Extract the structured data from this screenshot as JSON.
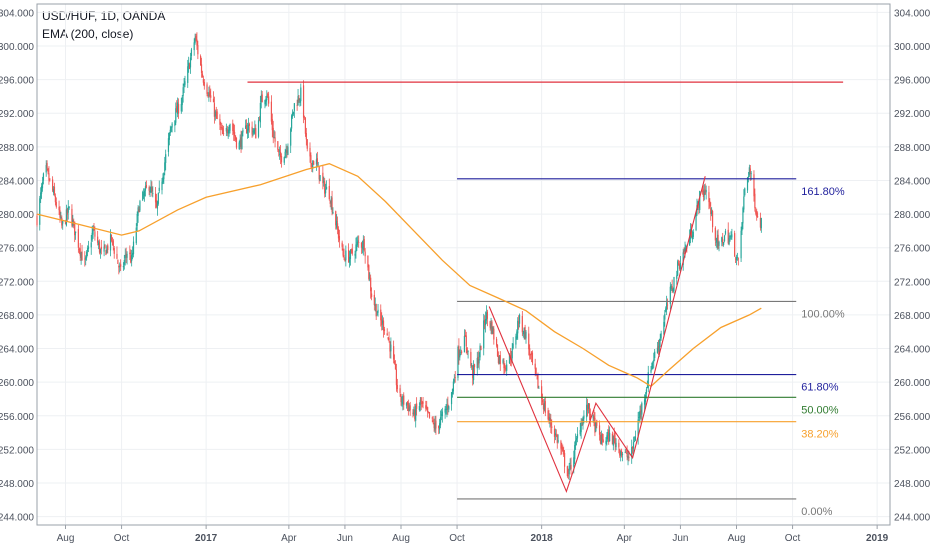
{
  "legend": {
    "symbol_line": "USD/HUF, 1D, OANDA",
    "indicator_line": "EMA (200, close)"
  },
  "chart_data": {
    "type": "candlestick",
    "title": "USD/HUF, 1D, OANDA",
    "y_axis": {
      "range": [
        243,
        305
      ],
      "ticks": [
        "244.000",
        "248.000",
        "252.000",
        "256.000",
        "260.000",
        "264.000",
        "268.000",
        "272.000",
        "276.000",
        "280.000",
        "284.000",
        "288.000",
        "292.000",
        "296.000",
        "300.000",
        "304.000"
      ],
      "position": "both"
    },
    "x_axis": {
      "start": "2016-07-01",
      "end": "2019-01-15",
      "ticks": [
        {
          "label": "Aug",
          "date": "2016-08-01",
          "bold": false
        },
        {
          "label": "Oct",
          "date": "2016-10-01",
          "bold": false
        },
        {
          "label": "2017",
          "date": "2017-01-01",
          "bold": true
        },
        {
          "label": "Apr",
          "date": "2017-04-01",
          "bold": false
        },
        {
          "label": "Jun",
          "date": "2017-06-01",
          "bold": false
        },
        {
          "label": "Aug",
          "date": "2017-08-01",
          "bold": false
        },
        {
          "label": "Oct",
          "date": "2017-10-01",
          "bold": false
        },
        {
          "label": "2018",
          "date": "2018-01-01",
          "bold": true
        },
        {
          "label": "Apr",
          "date": "2018-04-01",
          "bold": false
        },
        {
          "label": "Jun",
          "date": "2018-06-01",
          "bold": false
        },
        {
          "label": "Aug",
          "date": "2018-08-01",
          "bold": false
        },
        {
          "label": "Oct",
          "date": "2018-10-01",
          "bold": false
        },
        {
          "label": "2019",
          "date": "2019-01-01",
          "bold": true
        }
      ]
    },
    "grid": true,
    "price_path": [
      [
        "2016-07-01",
        279.5
      ],
      [
        "2016-07-10",
        285.5
      ],
      [
        "2016-07-20",
        282.0
      ],
      [
        "2016-07-28",
        278.5
      ],
      [
        "2016-08-05",
        280.5
      ],
      [
        "2016-08-15",
        276.5
      ],
      [
        "2016-08-22",
        274.0
      ],
      [
        "2016-08-31",
        278.0
      ],
      [
        "2016-09-10",
        275.0
      ],
      [
        "2016-09-20",
        277.0
      ],
      [
        "2016-09-30",
        273.0
      ],
      [
        "2016-10-07",
        275.5
      ],
      [
        "2016-10-12",
        274.5
      ],
      [
        "2016-10-20",
        281.0
      ],
      [
        "2016-10-31",
        283.5
      ],
      [
        "2016-11-08",
        280.5
      ],
      [
        "2016-11-15",
        285.0
      ],
      [
        "2016-11-25",
        291.0
      ],
      [
        "2016-12-05",
        293.5
      ],
      [
        "2016-12-12",
        297.0
      ],
      [
        "2016-12-20",
        301.0
      ],
      [
        "2016-12-28",
        296.5
      ],
      [
        "2017-01-05",
        294.0
      ],
      [
        "2017-01-12",
        291.5
      ],
      [
        "2017-01-20",
        289.0
      ],
      [
        "2017-01-27",
        291.0
      ],
      [
        "2017-02-05",
        288.0
      ],
      [
        "2017-02-15",
        290.5
      ],
      [
        "2017-02-25",
        289.5
      ],
      [
        "2017-03-02",
        293.5
      ],
      [
        "2017-03-08",
        294.5
      ],
      [
        "2017-03-15",
        289.5
      ],
      [
        "2017-03-22",
        286.5
      ],
      [
        "2017-03-30",
        288.0
      ],
      [
        "2017-04-07",
        293.0
      ],
      [
        "2017-04-15",
        294.5
      ],
      [
        "2017-04-22",
        286.0
      ],
      [
        "2017-04-30",
        286.5
      ],
      [
        "2017-05-07",
        283.5
      ],
      [
        "2017-05-15",
        282.5
      ],
      [
        "2017-05-22",
        279.0
      ],
      [
        "2017-05-30",
        275.0
      ],
      [
        "2017-06-07",
        275.0
      ],
      [
        "2017-06-15",
        276.5
      ],
      [
        "2017-06-22",
        276.5
      ],
      [
        "2017-06-30",
        270.5
      ],
      [
        "2017-07-08",
        267.5
      ],
      [
        "2017-07-15",
        266.5
      ],
      [
        "2017-07-22",
        263.5
      ],
      [
        "2017-07-30",
        258.0
      ],
      [
        "2017-08-07",
        257.5
      ],
      [
        "2017-08-15",
        256.0
      ],
      [
        "2017-08-22",
        257.5
      ],
      [
        "2017-08-30",
        256.0
      ],
      [
        "2017-09-08",
        254.5
      ],
      [
        "2017-09-18",
        256.5
      ],
      [
        "2017-09-25",
        258.5
      ],
      [
        "2017-10-02",
        263.5
      ],
      [
        "2017-10-10",
        265.0
      ],
      [
        "2017-10-18",
        261.0
      ],
      [
        "2017-10-25",
        263.0
      ],
      [
        "2017-11-01",
        268.0
      ],
      [
        "2017-11-08",
        266.5
      ],
      [
        "2017-11-15",
        263.0
      ],
      [
        "2017-11-22",
        262.0
      ],
      [
        "2017-11-30",
        263.5
      ],
      [
        "2017-12-07",
        267.5
      ],
      [
        "2017-12-15",
        265.5
      ],
      [
        "2017-12-22",
        262.0
      ],
      [
        "2017-12-31",
        258.5
      ],
      [
        "2018-01-07",
        256.0
      ],
      [
        "2018-01-15",
        254.0
      ],
      [
        "2018-01-22",
        252.0
      ],
      [
        "2018-01-30",
        249.0
      ],
      [
        "2018-02-05",
        251.5
      ],
      [
        "2018-02-12",
        255.0
      ],
      [
        "2018-02-20",
        257.0
      ],
      [
        "2018-02-27",
        255.0
      ],
      [
        "2018-03-07",
        253.0
      ],
      [
        "2018-03-15",
        253.5
      ],
      [
        "2018-03-22",
        253.0
      ],
      [
        "2018-03-30",
        251.5
      ],
      [
        "2018-04-08",
        251.0
      ],
      [
        "2018-04-15",
        255.0
      ],
      [
        "2018-04-22",
        258.0
      ],
      [
        "2018-04-30",
        262.0
      ],
      [
        "2018-05-08",
        264.5
      ],
      [
        "2018-05-15",
        268.0
      ],
      [
        "2018-05-22",
        271.0
      ],
      [
        "2018-05-30",
        274.0
      ],
      [
        "2018-06-07",
        276.0
      ],
      [
        "2018-06-15",
        278.5
      ],
      [
        "2018-06-22",
        282.0
      ],
      [
        "2018-06-29",
        283.0
      ],
      [
        "2018-07-06",
        279.0
      ],
      [
        "2018-07-12",
        276.0
      ],
      [
        "2018-07-20",
        277.5
      ],
      [
        "2018-07-27",
        277.0
      ],
      [
        "2018-08-03",
        274.0
      ],
      [
        "2018-08-10",
        283.0
      ],
      [
        "2018-08-15",
        285.5
      ],
      [
        "2018-08-20",
        282.0
      ],
      [
        "2018-08-24",
        279.5
      ],
      [
        "2018-08-28",
        279.0
      ]
    ],
    "ema_200": [
      [
        "2016-07-01",
        280.0
      ],
      [
        "2016-08-15",
        278.8
      ],
      [
        "2016-10-01",
        277.5
      ],
      [
        "2016-10-20",
        278.0
      ],
      [
        "2016-12-01",
        280.5
      ],
      [
        "2017-01-01",
        282.0
      ],
      [
        "2017-03-01",
        283.5
      ],
      [
        "2017-04-20",
        285.3
      ],
      [
        "2017-05-15",
        286.0
      ],
      [
        "2017-06-15",
        284.5
      ],
      [
        "2017-07-15",
        281.5
      ],
      [
        "2017-08-15",
        278.0
      ],
      [
        "2017-09-15",
        274.5
      ],
      [
        "2017-10-15",
        271.5
      ],
      [
        "2017-11-15",
        270.0
      ],
      [
        "2017-12-15",
        268.5
      ],
      [
        "2018-01-15",
        266.0
      ],
      [
        "2018-02-15",
        264.0
      ],
      [
        "2018-03-15",
        262.0
      ],
      [
        "2018-04-15",
        260.5
      ],
      [
        "2018-04-30",
        259.5
      ],
      [
        "2018-05-20",
        261.5
      ],
      [
        "2018-06-15",
        264.0
      ],
      [
        "2018-07-15",
        266.5
      ],
      [
        "2018-08-15",
        268.0
      ],
      [
        "2018-08-28",
        268.8
      ]
    ],
    "fibonacci": {
      "levels": [
        {
          "label": "161.80%",
          "price": 284.2,
          "color": "#1f1f9c"
        },
        {
          "label": "100.00%",
          "price": 269.6,
          "color": "#787878"
        },
        {
          "label": "61.80%",
          "price": 260.9,
          "color": "#1f1f9c"
        },
        {
          "label": "50.00%",
          "price": 258.2,
          "color": "#317c31"
        },
        {
          "label": "38.20%",
          "price": 255.3,
          "color": "#f7a02c"
        },
        {
          "label": "0.00%",
          "price": 246.1,
          "color": "#787878"
        }
      ],
      "start": "2017-10-01",
      "end": "2018-10-05"
    },
    "resistance_line": {
      "price": 295.7,
      "start": "2017-02-15",
      "end": "2018-11-25",
      "color": "#e0313e"
    },
    "pattern_lines": [
      [
        [
          "2017-11-05",
          269.0
        ],
        [
          "2018-01-28",
          247.0
        ],
        [
          "2018-03-01",
          257.5
        ],
        [
          "2018-04-10",
          251.0
        ],
        [
          "2018-06-28",
          284.5
        ]
      ]
    ],
    "colors": {
      "up": "#26a69a",
      "down": "#ef5350",
      "ema": "#f7a02c",
      "grid": "#eef0f3",
      "axis_text": "#4c525e"
    }
  }
}
